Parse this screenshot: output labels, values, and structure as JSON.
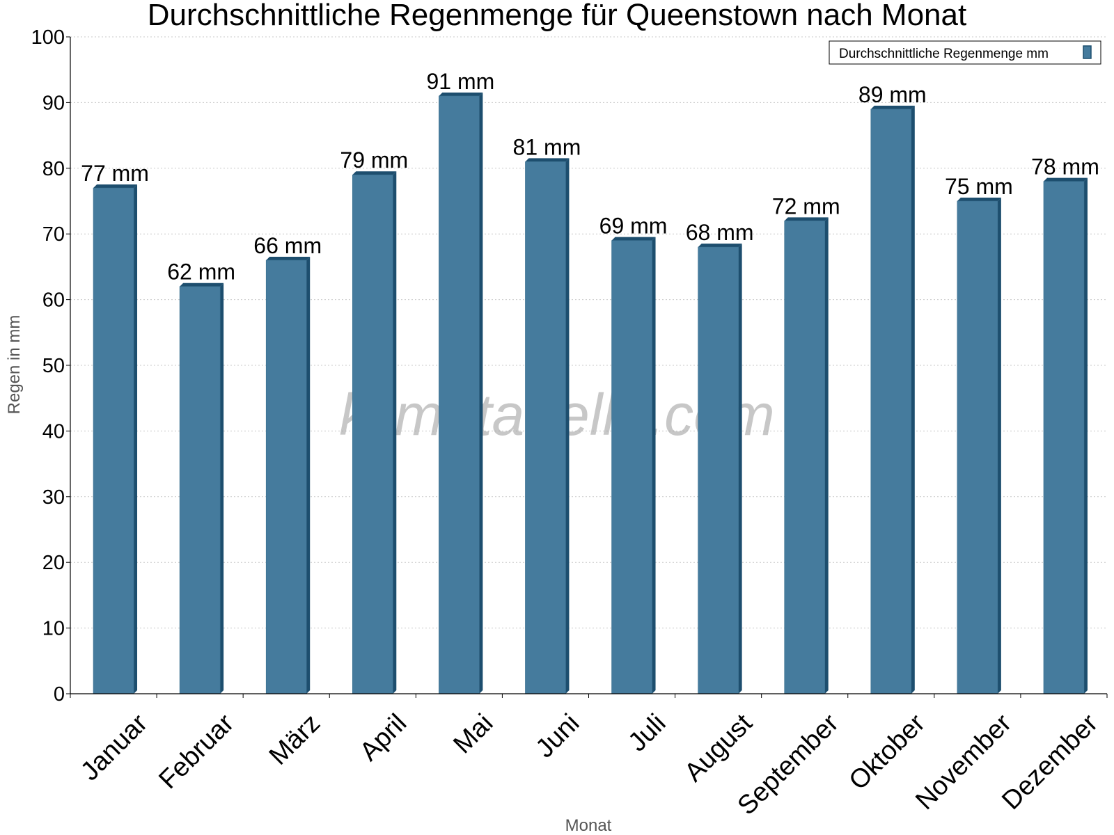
{
  "chart_data": {
    "type": "bar",
    "title": "Durchschnittliche Regenmenge für Queenstown nach Monat",
    "xlabel": "Monat",
    "ylabel": "Regen in mm",
    "ylim": [
      0,
      100
    ],
    "yticks": [
      0,
      10,
      20,
      30,
      40,
      50,
      60,
      70,
      80,
      90,
      100
    ],
    "grid": true,
    "legend_position": "top-right",
    "categories": [
      "Januar",
      "Februar",
      "März",
      "April",
      "Mai",
      "Juni",
      "Juli",
      "August",
      "September",
      "Oktober",
      "November",
      "Dezember"
    ],
    "series": [
      {
        "name": "Durchschnittliche Regenmenge mm",
        "values": [
          77,
          62,
          66,
          79,
          91,
          81,
          69,
          68,
          72,
          89,
          75,
          78
        ],
        "labels": [
          "77 mm",
          "62 mm",
          "66 mm",
          "79 mm",
          "91 mm",
          "81 mm",
          "69 mm",
          "68 mm",
          "72 mm",
          "89 mm",
          "75 mm",
          "78 mm"
        ]
      }
    ],
    "watermark": "klimatabelle.com",
    "colors": {
      "bar": "#457b9d",
      "bar_dark": "#1d4e6e",
      "grid": "#c8c8c8"
    }
  }
}
